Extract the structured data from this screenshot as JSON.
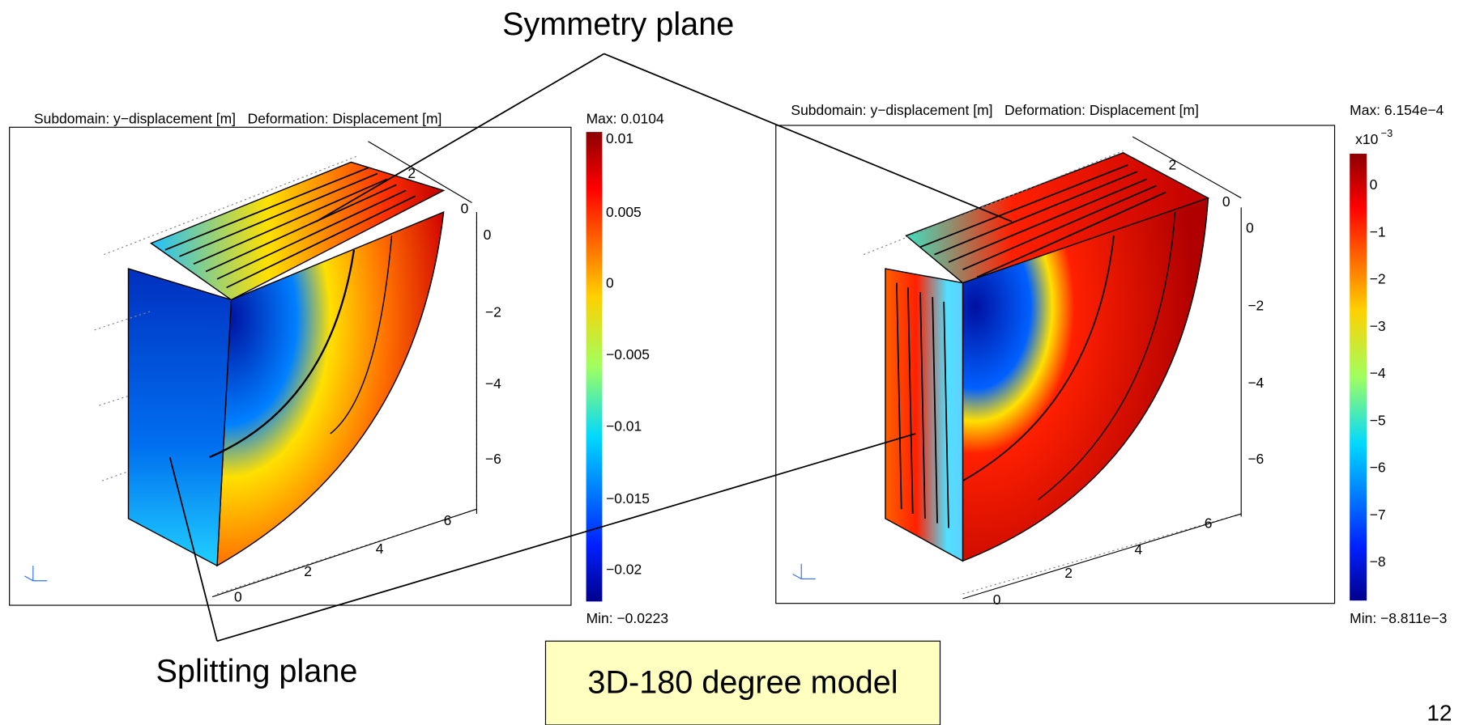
{
  "annotations": {
    "symmetry_plane": "Symmetry plane",
    "splitting_plane": "Splitting plane",
    "model_label": "3D-180 degree model",
    "page_number": "12"
  },
  "plots": [
    {
      "title": "Subdomain: y−displacement [m]   Deformation: Displacement [m]",
      "max": "Max: 0.0104",
      "min": "Min: −0.0223",
      "colorbar_labels": [
        "0.01",
        "0.005",
        "0",
        "−0.005",
        "−0.01",
        "−0.015",
        "−0.02"
      ],
      "x_axis_labels": [
        "0",
        "2",
        "4",
        "6"
      ],
      "z_axis_labels": [
        "0",
        "−2",
        "−4",
        "−6"
      ],
      "y_axis_labels": [
        "2",
        "0"
      ]
    },
    {
      "title": "Subdomain: y−displacement [m]   Deformation: Displacement [m]",
      "max": "Max: 6.154e−4",
      "min": "Min: −8.811e−3",
      "multiplier": {
        "base": "x10",
        "exponent": "−3"
      },
      "colorbar_labels": [
        "0",
        "−1",
        "−2",
        "−3",
        "−4",
        "−5",
        "−6",
        "−7",
        "−8"
      ],
      "x_axis_labels": [
        "0",
        "2",
        "4",
        "6"
      ],
      "z_axis_labels": [
        "0",
        "−2",
        "−4",
        "−6"
      ],
      "y_axis_labels": [
        "2",
        "0"
      ]
    }
  ]
}
